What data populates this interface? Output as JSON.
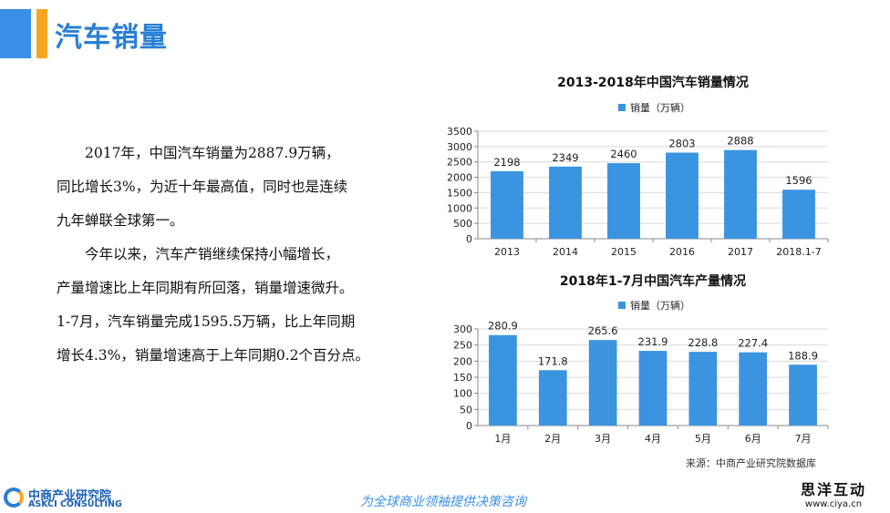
{
  "header": {
    "title": "汽车销量"
  },
  "body": {
    "paragraphs": [
      [
        "2017年，中国汽车销量为2887.9万辆，",
        "同比增长3%，为近十年最高值，同时也是连续",
        "九年蝉联全球第一。"
      ],
      [
        "今年以来，汽车产销继续保持小幅增长，",
        "产量增速比上年同期有所回落，销量增速微升。",
        "1-7月，汽车销量完成1595.5万辆，比上年同期",
        "增长4.3%，销量增速高于上年同期0.2个百分点。"
      ]
    ]
  },
  "chart_data": [
    {
      "type": "bar",
      "title": "2013-2018年中国汽车销量情况",
      "categories": [
        "2013",
        "2014",
        "2015",
        "2016",
        "2017",
        "2018.1-7"
      ],
      "series": [
        {
          "name": "销量（万辆）",
          "values": [
            2198,
            2349,
            2460,
            2803,
            2888,
            1596
          ]
        }
      ],
      "data_labels": [
        "2198",
        "2349",
        "2460",
        "2803",
        "2888",
        "1596"
      ],
      "ylim": [
        0,
        3500
      ],
      "yticks": [
        0,
        500,
        1000,
        1500,
        2000,
        2500,
        3000,
        3500
      ],
      "grid": true,
      "legend": "top-center",
      "color": "#3a94e0"
    },
    {
      "type": "bar",
      "title": "2018年1-7月中国汽车产量情况",
      "categories": [
        "1月",
        "2月",
        "3月",
        "4月",
        "5月",
        "6月",
        "7月"
      ],
      "series": [
        {
          "name": "销量（万辆）",
          "values": [
            280.9,
            171.8,
            265.6,
            231.9,
            228.8,
            227.4,
            188.9
          ]
        }
      ],
      "data_labels": [
        "280.9",
        "171.8",
        "265.6",
        "231.9",
        "228.8",
        "227.4",
        "188.9"
      ],
      "ylim": [
        0,
        300
      ],
      "yticks": [
        0,
        50,
        100,
        150,
        200,
        250,
        300
      ],
      "grid": true,
      "legend": "top-center",
      "color": "#3a94e0"
    }
  ],
  "footer": {
    "source": "来源：中商产业研究院数据库",
    "logo_cn": "中商产业研究院",
    "logo_en": "ASKCI CONSULTING",
    "slogan": "为全球商业领袖提供决策咨询",
    "watermark_cn": "思洋互动",
    "watermark_url": "www.ciya.cn"
  }
}
